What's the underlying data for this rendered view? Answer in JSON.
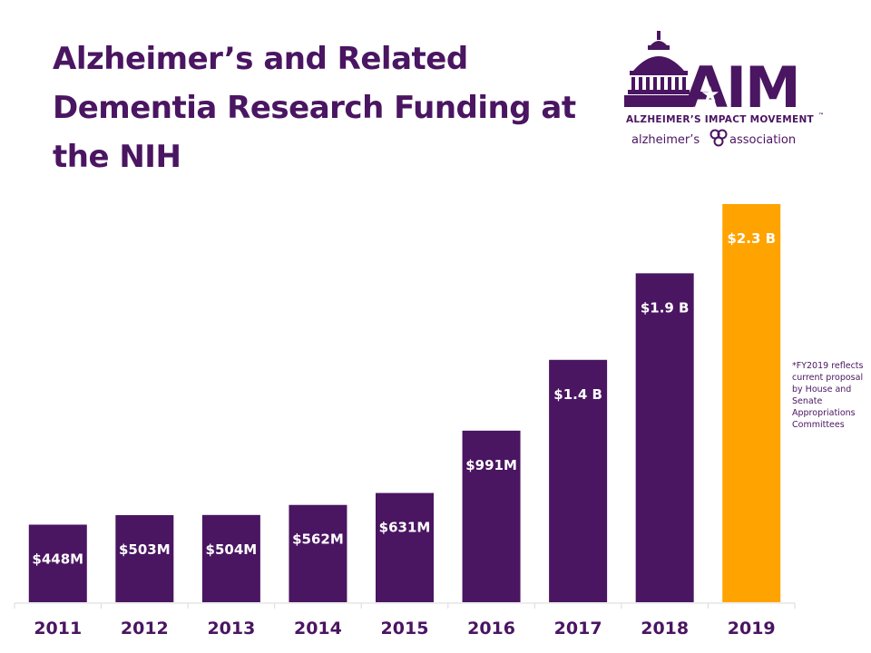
{
  "title": "Alzheimer’s and Related Dementia Research Funding at the NIH",
  "logo": {
    "wordmark": "AIM",
    "name": "ALZHEIMER’S IMPACT MOVEMENT",
    "tm": "™",
    "partner": "alzheimer’s",
    "partner2": "association"
  },
  "footnote": "*FY2019 reflects current proposal by House and Senate Appropriations Committees",
  "colors": {
    "bar": "#4a1561",
    "highlight": "#ffa300",
    "text": "#4a1561"
  },
  "chart_data": {
    "type": "bar",
    "title": "Alzheimer’s and Related Dementia Research Funding at the NIH",
    "xlabel": "",
    "ylabel": "",
    "unit": "USD",
    "categories": [
      "2011",
      "2012",
      "2013",
      "2014",
      "2015",
      "2016",
      "2017",
      "2018",
      "2019"
    ],
    "values": [
      448000000,
      503000000,
      504000000,
      562000000,
      631000000,
      991000000,
      1400000000,
      1900000000,
      2300000000
    ],
    "data_labels": [
      "$448M",
      "$503M",
      "$504M",
      "$562M",
      "$631M",
      "$991M",
      "$1.4 B",
      "$1.9 B",
      "$2.3 B"
    ],
    "highlight_category": "2019",
    "ylim": [
      0,
      2300000000
    ],
    "grid": false,
    "legend": "none"
  }
}
